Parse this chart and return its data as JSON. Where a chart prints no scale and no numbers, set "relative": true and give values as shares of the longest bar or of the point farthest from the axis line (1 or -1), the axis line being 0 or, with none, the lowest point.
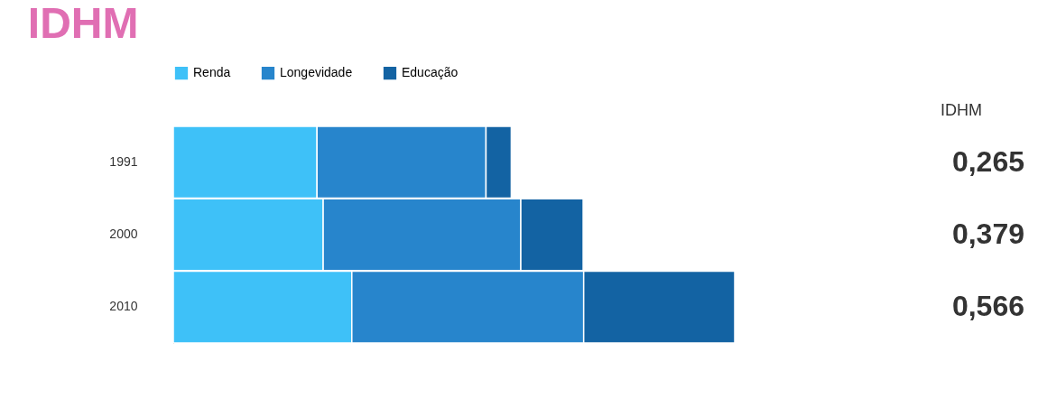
{
  "chart_data": {
    "type": "bar",
    "title": "IDHM",
    "orientation": "horizontal",
    "stacked": true,
    "relative": true,
    "legend": "top left",
    "categories": [
      "1991",
      "2000",
      "2010"
    ],
    "series": [
      {
        "name": "Renda",
        "color": "#3ec1f8",
        "values": [
          0.256,
          0.267,
          0.318
        ]
      },
      {
        "name": "Longevidade",
        "color": "#2785cc",
        "values": [
          0.301,
          0.352,
          0.413
        ]
      },
      {
        "name": "Educação",
        "color": "#1363a3",
        "values": [
          0.045,
          0.111,
          0.269
        ]
      }
    ],
    "annotations": [
      "IDHM",
      "0,265",
      "0,379",
      "0,566"
    ]
  }
}
